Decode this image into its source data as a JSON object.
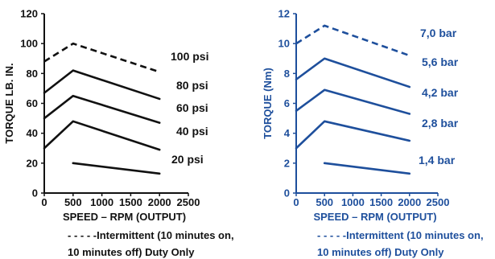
{
  "chart_data": [
    {
      "type": "line",
      "color": "#111111",
      "xlabel": "SPEED – RPM (OUTPUT)",
      "ylabel": "TORQUE LB. IN.",
      "xlim": [
        0,
        2500
      ],
      "ylim": [
        0,
        120
      ],
      "xticks": [
        0,
        500,
        1000,
        1500,
        2000,
        2500
      ],
      "yticks": [
        0,
        20,
        40,
        60,
        80,
        100,
        120
      ],
      "tick_labels_x": [
        "0",
        "500",
        "1000",
        "1500",
        "2000",
        "2500"
      ],
      "tick_labels_y": [
        "0",
        "20",
        "40",
        "60",
        "80",
        "100",
        "120"
      ],
      "series": [
        {
          "name": "100 psi",
          "style": "dashed",
          "x": [
            0,
            500,
            2000
          ],
          "y": [
            88,
            100,
            81
          ]
        },
        {
          "name": "80 psi",
          "style": "solid",
          "x": [
            0,
            500,
            2000
          ],
          "y": [
            67,
            82,
            63
          ]
        },
        {
          "name": "60 psi",
          "style": "solid",
          "x": [
            0,
            500,
            2000
          ],
          "y": [
            50,
            65,
            47
          ]
        },
        {
          "name": "40 psi",
          "style": "solid",
          "x": [
            0,
            500,
            2000
          ],
          "y": [
            30,
            48,
            29
          ]
        },
        {
          "name": "20 psi",
          "style": "solid",
          "x": [
            500,
            2000
          ],
          "y": [
            20,
            13
          ]
        }
      ],
      "note_lines": [
        "- - - - -Intermittent (10 minutes on,",
        "10 minutes off) Duty Only"
      ]
    },
    {
      "type": "line",
      "color": "#1e4f9c",
      "xlabel": "SPEED – RPM (OUTPUT)",
      "ylabel": "TORQUE (Nm)",
      "xlim": [
        0,
        2500
      ],
      "ylim": [
        0,
        12
      ],
      "xticks": [
        0,
        500,
        1000,
        1500,
        2000,
        2500
      ],
      "yticks": [
        0,
        2,
        4,
        6,
        8,
        10,
        12
      ],
      "tick_labels_x": [
        "0",
        "500",
        "1000",
        "1500",
        "2000",
        "2500"
      ],
      "tick_labels_y": [
        "0",
        "2",
        "4",
        "6",
        "8",
        "10",
        "12"
      ],
      "series": [
        {
          "name": "7,0 bar",
          "style": "dashed",
          "x": [
            0,
            500,
            2000
          ],
          "y": [
            10,
            11.2,
            9.2
          ]
        },
        {
          "name": "5,6 bar",
          "style": "solid",
          "x": [
            0,
            500,
            2000
          ],
          "y": [
            7.6,
            9,
            7.1
          ]
        },
        {
          "name": "4,2 bar",
          "style": "solid",
          "x": [
            0,
            500,
            2000
          ],
          "y": [
            5.5,
            6.9,
            5.3
          ]
        },
        {
          "name": "2,8 bar",
          "style": "solid",
          "x": [
            0,
            500,
            2000
          ],
          "y": [
            3,
            4.8,
            3.5
          ]
        },
        {
          "name": "1,4 bar",
          "style": "solid",
          "x": [
            500,
            2000
          ],
          "y": [
            2,
            1.3
          ]
        }
      ],
      "note_lines": [
        "- - - - -Intermittent (10 minutes on,",
        "10 minutes off) Duty Only"
      ]
    }
  ]
}
